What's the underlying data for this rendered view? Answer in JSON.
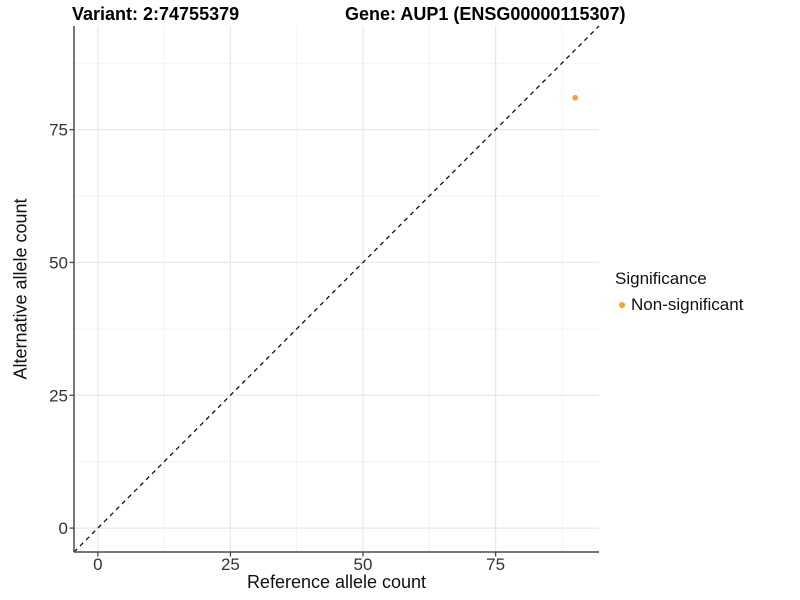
{
  "chart_data": {
    "type": "scatter",
    "titles": {
      "variant": "Variant: 2:74755379",
      "gene": "Gene: AUP1 (ENSG00000115307)"
    },
    "xlabel": "Reference allele count",
    "ylabel": "Alternative allele count",
    "x_ticks": [
      0,
      25,
      50,
      75
    ],
    "y_ticks": [
      0,
      25,
      50,
      75
    ],
    "xlim": [
      0,
      90
    ],
    "ylim": [
      0,
      90
    ],
    "expand_fraction": 0.05,
    "grid": {
      "major": true,
      "minor": true,
      "major_color": "#e8e8e8",
      "minor_color": "#f3f3f3"
    },
    "reference_line": {
      "type": "identity",
      "slope": 1,
      "intercept": 0,
      "style": "dashed",
      "color": "#111111"
    },
    "points": [
      {
        "x": 90,
        "y": 81,
        "series": "Non-significant",
        "color": "#F9A229"
      }
    ],
    "legend": {
      "title": "Significance",
      "position": "right",
      "entries": [
        {
          "label": "Non-significant",
          "color": "#F9A229",
          "marker": "circle"
        }
      ]
    },
    "axis_color": "#4a4a4a",
    "tick_label_color": "#333333"
  }
}
